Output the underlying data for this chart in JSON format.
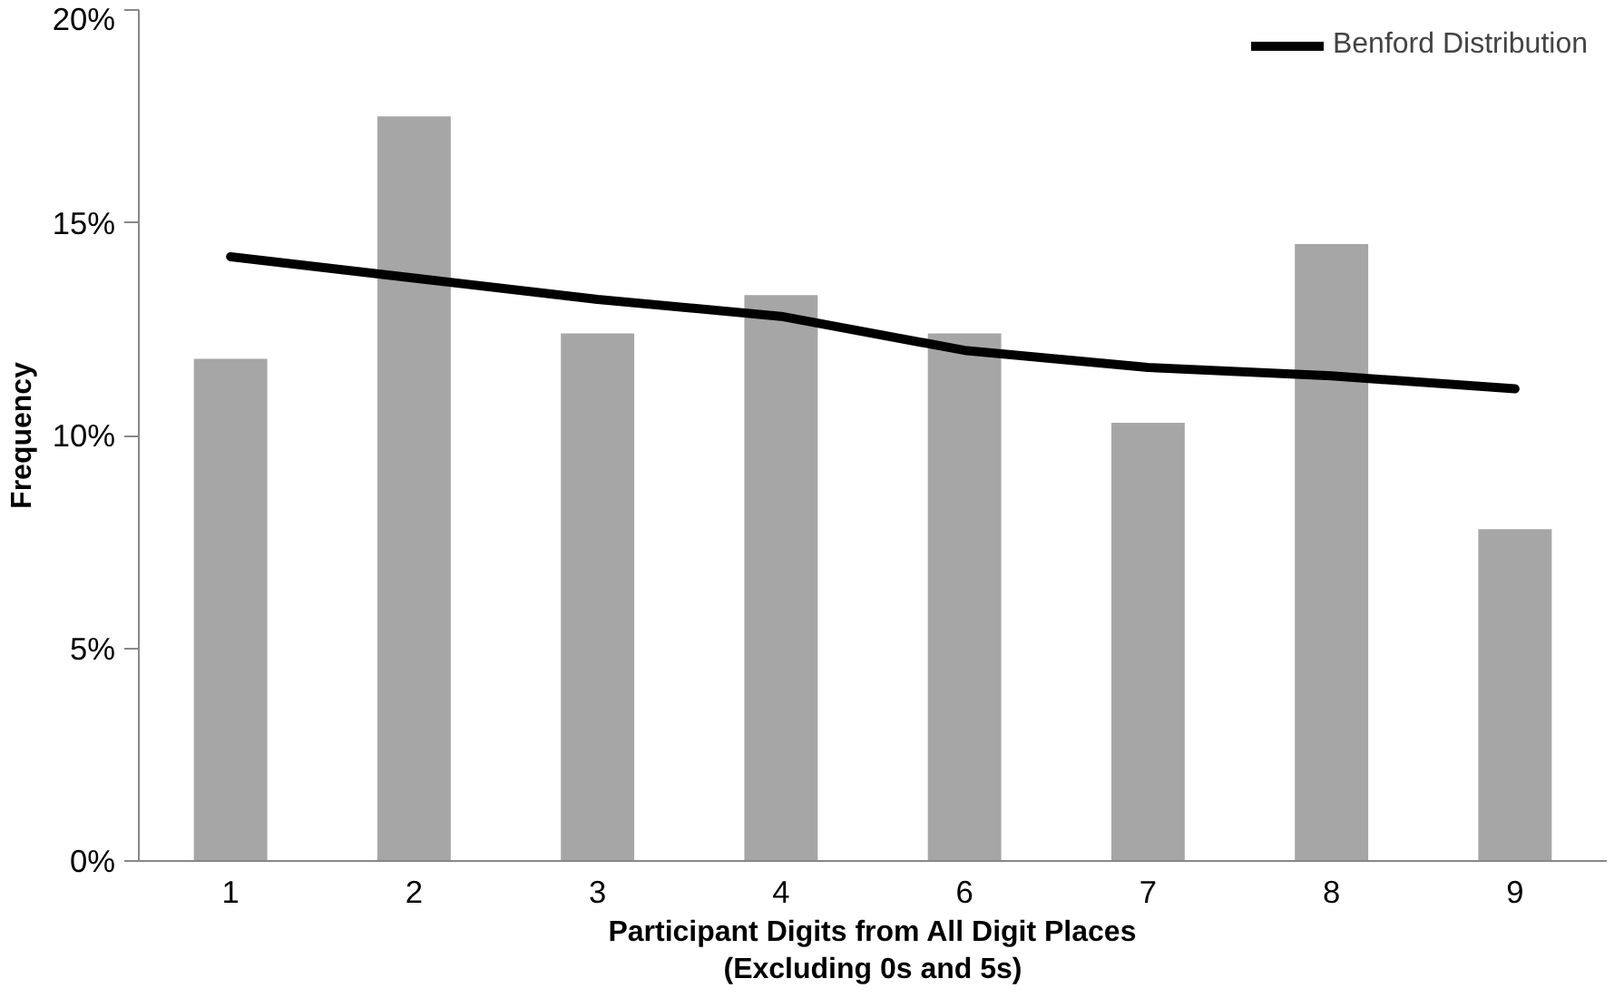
{
  "chart_data": {
    "type": "bar",
    "xlabel": "Participant Digits from All Digit Places\n(Excluding 0s and 5s)",
    "ylabel": "Frequency",
    "categories": [
      "1",
      "2",
      "3",
      "4",
      "6",
      "7",
      "8",
      "9"
    ],
    "series": [
      {
        "color": "#a6a6a6",
        "values": [
          11.8,
          17.5,
          12.4,
          13.3,
          12.4,
          10.3,
          14.5,
          7.8
        ]
      },
      {
        "type": "line",
        "name": "Benford Distribution",
        "color": "#000000",
        "values": [
          14.2,
          13.7,
          13.2,
          12.8,
          12.0,
          11.6,
          11.4,
          11.1
        ]
      }
    ],
    "ylim": [
      0,
      20
    ],
    "yticks": [
      {
        "value": 0,
        "label": "0%"
      },
      {
        "value": 5,
        "label": "5%"
      },
      {
        "value": 10,
        "label": "10%"
      },
      {
        "value": 15,
        "label": "15%"
      },
      {
        "value": 20,
        "label": "20%"
      }
    ],
    "grid": false,
    "legend": "top right",
    "marker": "none",
    "line_style": "solid"
  }
}
